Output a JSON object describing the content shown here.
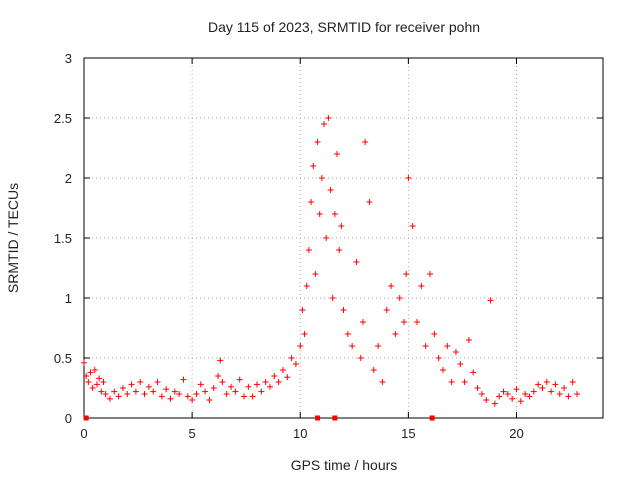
{
  "chart_data": {
    "type": "scatter",
    "title": "Day 115 of 2023, SRMTID for receiver pohn",
    "xlabel": "GPS time / hours",
    "ylabel": "SRMTID / TECUs",
    "xlim": [
      0,
      24
    ],
    "ylim": [
      0,
      3
    ],
    "xticks": [
      0,
      5,
      10,
      15,
      20
    ],
    "yticks": [
      0,
      0.5,
      1,
      1.5,
      2,
      2.5,
      3
    ],
    "xtick_labels": [
      "0",
      "5",
      "10",
      "15",
      "20"
    ],
    "ytick_labels": [
      "0",
      "0.5",
      "1",
      "1.5",
      "2",
      "2.5",
      "3"
    ],
    "grid": true,
    "marker": "+",
    "series": [
      {
        "name": "SRMTID",
        "color": "#ff0000",
        "x": [
          0.0,
          0.1,
          0.2,
          0.3,
          0.4,
          0.5,
          0.6,
          0.7,
          0.8,
          0.9,
          1.0,
          1.2,
          1.4,
          1.6,
          1.8,
          2.0,
          2.2,
          2.4,
          2.6,
          2.8,
          3.0,
          3.2,
          3.4,
          3.6,
          3.8,
          4.0,
          4.2,
          4.4,
          4.6,
          4.8,
          5.0,
          5.2,
          5.4,
          5.6,
          5.8,
          6.0,
          6.2,
          6.3,
          6.4,
          6.6,
          6.8,
          7.0,
          7.2,
          7.4,
          7.6,
          7.8,
          8.0,
          8.2,
          8.4,
          8.6,
          8.8,
          9.0,
          9.2,
          9.4,
          9.6,
          9.8,
          10.0,
          10.1,
          10.2,
          10.3,
          10.4,
          10.5,
          10.6,
          10.7,
          10.8,
          10.9,
          11.0,
          11.1,
          11.2,
          11.3,
          11.4,
          11.5,
          11.6,
          11.7,
          11.8,
          11.9,
          12.0,
          12.2,
          12.4,
          12.6,
          12.8,
          12.9,
          13.0,
          13.2,
          13.4,
          13.6,
          13.8,
          14.0,
          14.2,
          14.4,
          14.6,
          14.8,
          14.9,
          15.0,
          15.2,
          15.4,
          15.6,
          15.8,
          16.0,
          16.2,
          16.4,
          16.6,
          16.8,
          17.0,
          17.2,
          17.4,
          17.6,
          17.8,
          18.0,
          18.2,
          18.4,
          18.6,
          18.8,
          19.0,
          19.2,
          19.4,
          19.6,
          19.8,
          20.0,
          20.2,
          20.4,
          20.6,
          20.8,
          21.0,
          21.2,
          21.4,
          21.6,
          21.8,
          22.0,
          22.2,
          22.4,
          22.6,
          22.8
        ],
        "y": [
          0.46,
          0.35,
          0.3,
          0.38,
          0.25,
          0.4,
          0.28,
          0.33,
          0.22,
          0.3,
          0.2,
          0.16,
          0.22,
          0.18,
          0.25,
          0.2,
          0.28,
          0.22,
          0.3,
          0.2,
          0.26,
          0.22,
          0.3,
          0.18,
          0.24,
          0.16,
          0.22,
          0.2,
          0.32,
          0.18,
          0.15,
          0.2,
          0.28,
          0.22,
          0.15,
          0.25,
          0.35,
          0.48,
          0.3,
          0.2,
          0.26,
          0.22,
          0.32,
          0.18,
          0.26,
          0.18,
          0.28,
          0.22,
          0.3,
          0.26,
          0.35,
          0.3,
          0.4,
          0.34,
          0.5,
          0.45,
          0.6,
          0.9,
          0.7,
          1.1,
          1.4,
          1.8,
          2.1,
          1.2,
          2.3,
          1.7,
          2.0,
          2.45,
          1.5,
          2.5,
          1.9,
          1.0,
          1.7,
          2.2,
          1.4,
          1.6,
          0.9,
          0.7,
          0.6,
          1.3,
          0.5,
          0.8,
          2.3,
          1.8,
          0.4,
          0.6,
          0.3,
          0.9,
          1.1,
          0.7,
          1.0,
          0.8,
          1.2,
          2.0,
          1.6,
          0.8,
          1.1,
          0.6,
          1.2,
          0.7,
          0.5,
          0.4,
          0.6,
          0.3,
          0.55,
          0.45,
          0.3,
          0.65,
          0.38,
          0.25,
          0.2,
          0.15,
          0.98,
          0.12,
          0.18,
          0.22,
          0.2,
          0.16,
          0.24,
          0.14,
          0.2,
          0.18,
          0.22,
          0.28,
          0.25,
          0.3,
          0.22,
          0.28,
          0.2,
          0.25,
          0.18,
          0.3,
          0.2
        ],
        "gap_markers_x": [
          0.1,
          10.8,
          11.6,
          16.1
        ]
      }
    ]
  }
}
